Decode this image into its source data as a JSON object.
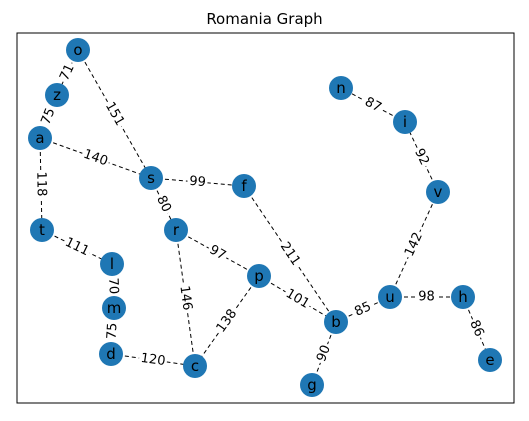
{
  "title": "Romania Graph",
  "style": {
    "node_color": "#1f77b4",
    "edge_color": "#000000",
    "label_background": "#ffffff",
    "frame_color": "#000000"
  },
  "graph": {
    "nodes": [
      {
        "id": "o",
        "label": "o"
      },
      {
        "id": "z",
        "label": "z"
      },
      {
        "id": "a",
        "label": "a"
      },
      {
        "id": "s",
        "label": "s"
      },
      {
        "id": "f",
        "label": "f"
      },
      {
        "id": "t",
        "label": "t"
      },
      {
        "id": "r",
        "label": "r"
      },
      {
        "id": "l",
        "label": "l"
      },
      {
        "id": "m",
        "label": "m"
      },
      {
        "id": "d",
        "label": "d"
      },
      {
        "id": "c",
        "label": "c"
      },
      {
        "id": "p",
        "label": "p"
      },
      {
        "id": "b",
        "label": "b"
      },
      {
        "id": "g",
        "label": "g"
      },
      {
        "id": "u",
        "label": "u"
      },
      {
        "id": "h",
        "label": "h"
      },
      {
        "id": "e",
        "label": "e"
      },
      {
        "id": "v",
        "label": "v"
      },
      {
        "id": "i",
        "label": "i"
      },
      {
        "id": "n",
        "label": "n"
      }
    ],
    "edges": [
      {
        "from": "o",
        "to": "z",
        "weight": "71"
      },
      {
        "from": "z",
        "to": "a",
        "weight": "75"
      },
      {
        "from": "o",
        "to": "s",
        "weight": "151"
      },
      {
        "from": "a",
        "to": "s",
        "weight": "140"
      },
      {
        "from": "a",
        "to": "t",
        "weight": "118"
      },
      {
        "from": "s",
        "to": "f",
        "weight": "99"
      },
      {
        "from": "s",
        "to": "r",
        "weight": "80"
      },
      {
        "from": "t",
        "to": "l",
        "weight": "111"
      },
      {
        "from": "l",
        "to": "m",
        "weight": "70"
      },
      {
        "from": "m",
        "to": "d",
        "weight": "75"
      },
      {
        "from": "d",
        "to": "c",
        "weight": "120"
      },
      {
        "from": "r",
        "to": "c",
        "weight": "146"
      },
      {
        "from": "r",
        "to": "p",
        "weight": "97"
      },
      {
        "from": "p",
        "to": "c",
        "weight": "138"
      },
      {
        "from": "p",
        "to": "b",
        "weight": "101"
      },
      {
        "from": "f",
        "to": "b",
        "weight": "211"
      },
      {
        "from": "b",
        "to": "g",
        "weight": "90"
      },
      {
        "from": "b",
        "to": "u",
        "weight": "85"
      },
      {
        "from": "u",
        "to": "h",
        "weight": "98"
      },
      {
        "from": "h",
        "to": "e",
        "weight": "86"
      },
      {
        "from": "u",
        "to": "v",
        "weight": "142"
      },
      {
        "from": "v",
        "to": "i",
        "weight": "92"
      },
      {
        "from": "i",
        "to": "n",
        "weight": "87"
      }
    ]
  }
}
